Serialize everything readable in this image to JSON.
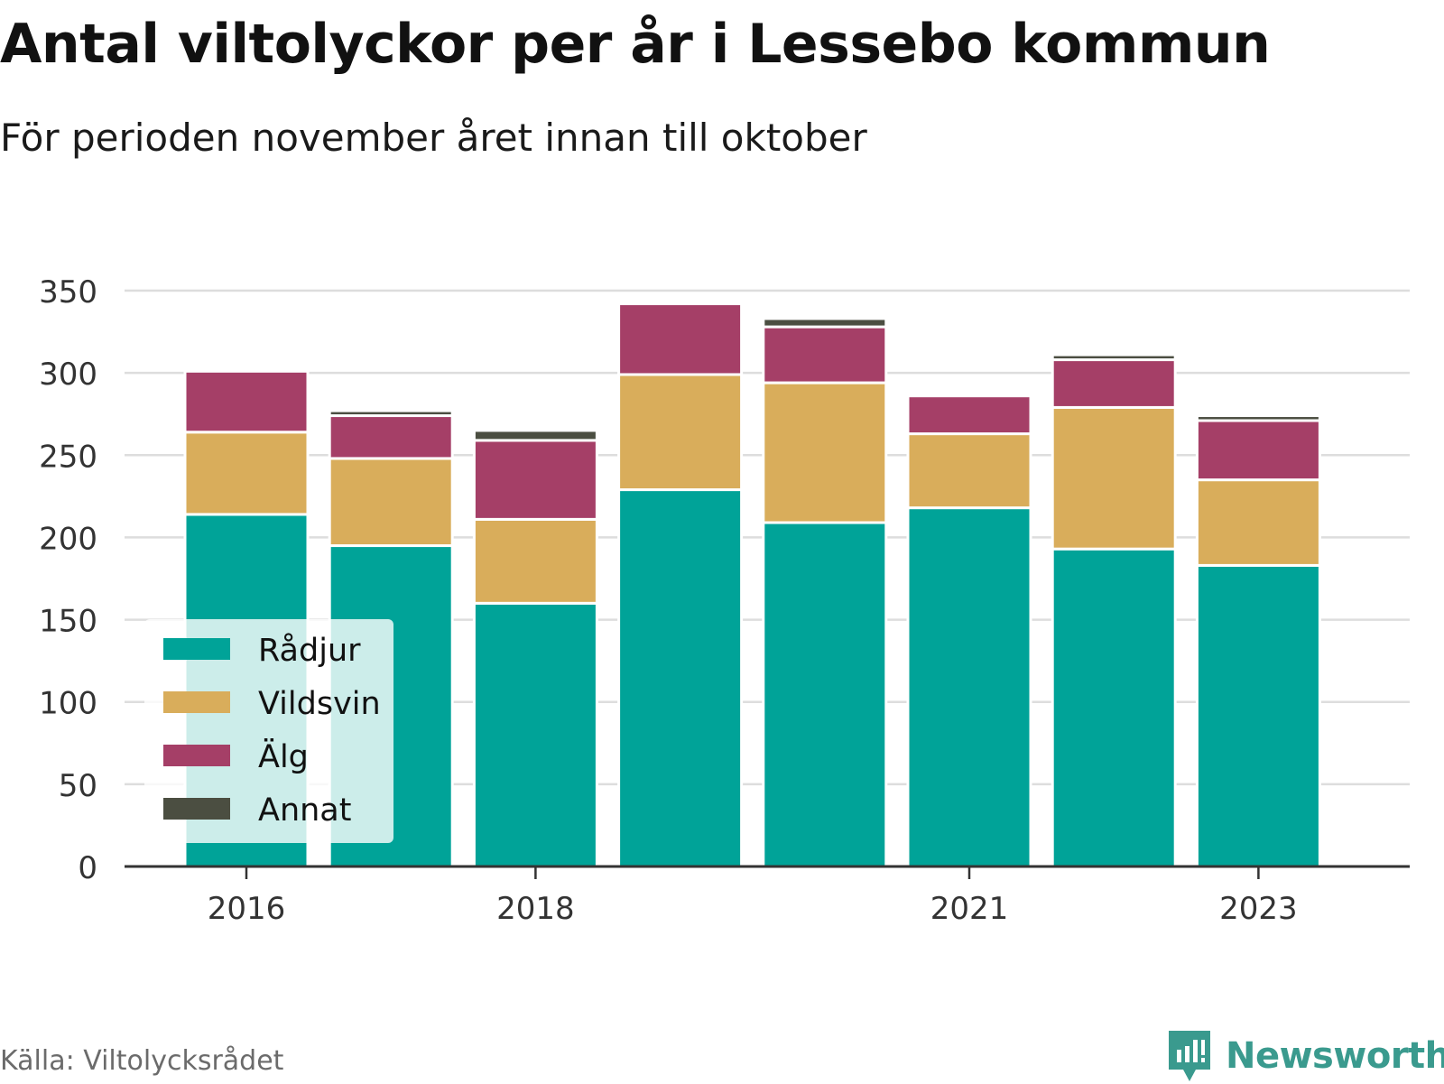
{
  "title": "Antal viltolyckor per år i Lessebo kommun",
  "subtitle": "För perioden november året innan till oktober",
  "source": "Källa: Viltolycksrådet",
  "brand": {
    "name": "Newsworthy",
    "icon": "newsworthy-logo-icon",
    "color": "#3a9a8e"
  },
  "chart_data": {
    "type": "bar",
    "stacked": true,
    "categories": [
      "2016",
      "2017",
      "2018",
      "2019",
      "2020",
      "2021",
      "2022",
      "2023"
    ],
    "x_tick_labels": [
      "2016",
      "",
      "2018",
      "",
      "",
      "2021",
      "",
      "2023"
    ],
    "series": [
      {
        "name": "Rådjur",
        "color": "#00a398",
        "values": [
          214,
          195,
          160,
          229,
          209,
          218,
          193,
          183
        ]
      },
      {
        "name": "Vildsvin",
        "color": "#d9ad5b",
        "values": [
          50,
          53,
          51,
          70,
          85,
          45,
          86,
          52
        ]
      },
      {
        "name": "Älg",
        "color": "#a53f67",
        "values": [
          37,
          26,
          48,
          43,
          34,
          23,
          29,
          36
        ]
      },
      {
        "name": "Annat",
        "color": "#4b4e41",
        "values": [
          0,
          3,
          6,
          0,
          5,
          0,
          3,
          3
        ]
      }
    ],
    "ylim": [
      0,
      350
    ],
    "yticks": [
      0,
      50,
      100,
      150,
      200,
      250,
      300,
      350
    ],
    "grid": true,
    "legend": "bottom-left",
    "xlabel": "",
    "ylabel": ""
  }
}
